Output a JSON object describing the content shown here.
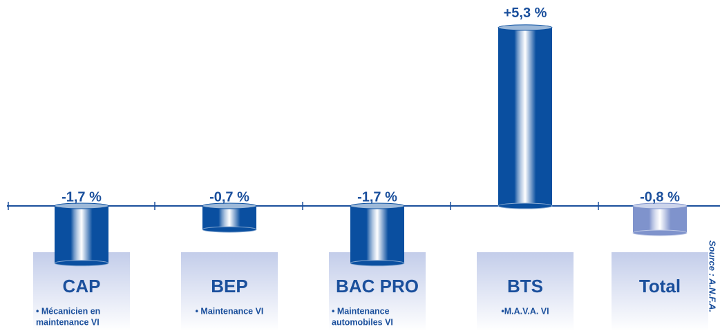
{
  "chart_data": {
    "type": "bar",
    "categories": [
      "CAP",
      "BEP",
      "BAC PRO",
      "BTS",
      "Total"
    ],
    "subtitles": [
      [
        "• Mécanicien en",
        "maintenance VI"
      ],
      [
        "• Maintenance VI"
      ],
      [
        "• Maintenance",
        "automobiles VI"
      ],
      [
        "•M.A.V.A. VI"
      ],
      []
    ],
    "values": [
      -1.7,
      -0.7,
      -1.7,
      5.3,
      -0.8
    ],
    "value_labels": [
      "-1,7 %",
      "-0,7 %",
      "-1,7 %",
      "+5,3 %",
      "-0,8 %"
    ],
    "colors": [
      "#0a4fa0",
      "#0a4fa0",
      "#0a4fa0",
      "#0a4fa0",
      "#7f93cc"
    ],
    "source": "Source : A.N.F.A."
  }
}
